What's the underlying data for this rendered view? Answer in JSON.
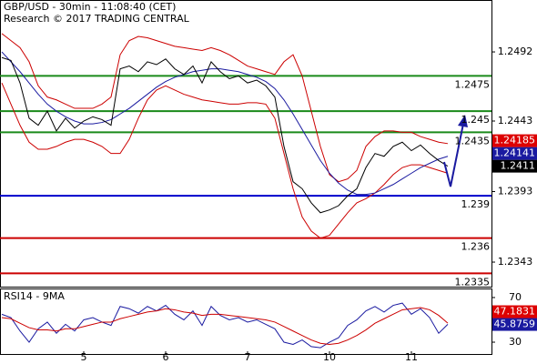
{
  "chart_data": [
    {
      "type": "line",
      "title": "GBP/USD - 30min - 11:08:40 (CET)",
      "subtitle": "Research © 2017 TRADING CENTRAL",
      "categories": [
        null,
        null,
        null,
        null,
        null,
        null,
        null,
        null,
        null,
        "5",
        null,
        null,
        null,
        null,
        null,
        null,
        null,
        null,
        "6",
        null,
        null,
        null,
        null,
        null,
        null,
        null,
        null,
        "7",
        null,
        null,
        null,
        null,
        null,
        null,
        null,
        null,
        "10",
        null,
        null,
        null,
        null,
        null,
        null,
        null,
        null,
        "11",
        null,
        null,
        null,
        null
      ],
      "series": [
        {
          "color": "#cc0000",
          "values": [
            1.2505,
            1.25,
            1.2495,
            1.2485,
            1.2468,
            1.246,
            1.2458,
            1.2455,
            1.2452,
            1.2452,
            1.2452,
            1.2455,
            1.246,
            1.249,
            1.25,
            1.2503,
            1.2502,
            1.25,
            1.2498,
            1.2496,
            1.2495,
            1.2494,
            1.2493,
            1.2495,
            1.2493,
            1.249,
            1.2486,
            1.2482,
            1.248,
            1.2478,
            1.2476,
            1.2485,
            1.249,
            1.2475,
            1.245,
            1.2425,
            1.2405,
            1.24,
            1.2402,
            1.2408,
            1.2425,
            1.2432,
            1.2436,
            1.2436,
            1.2435,
            1.2435,
            1.2432,
            1.243,
            1.2428,
            1.2427
          ]
        },
        {
          "color": "#cc0000",
          "values": [
            1.247,
            1.2455,
            1.244,
            1.2428,
            1.2423,
            1.2423,
            1.2425,
            1.2428,
            1.243,
            1.243,
            1.2428,
            1.2425,
            1.242,
            1.242,
            1.243,
            1.2445,
            1.2458,
            1.2465,
            1.2468,
            1.2465,
            1.2462,
            1.246,
            1.2458,
            1.2457,
            1.2456,
            1.2455,
            1.2455,
            1.2456,
            1.2456,
            1.2455,
            1.2445,
            1.242,
            1.2395,
            1.2375,
            1.2365,
            1.236,
            1.2362,
            1.237,
            1.2378,
            1.2385,
            1.2388,
            1.2392,
            1.2398,
            1.2405,
            1.241,
            1.2412,
            1.2412,
            1.241,
            1.2408,
            1.2406
          ]
        },
        {
          "color": "#1a1aa0",
          "values": [
            1.2492,
            1.2485,
            1.2478,
            1.247,
            1.2462,
            1.2455,
            1.245,
            1.2446,
            1.2443,
            1.2441,
            1.2441,
            1.2442,
            1.2444,
            1.2448,
            1.2452,
            1.2457,
            1.2462,
            1.2467,
            1.2471,
            1.2474,
            1.2476,
            1.2478,
            1.2479,
            1.248,
            1.248,
            1.2479,
            1.2478,
            1.2476,
            1.2474,
            1.2471,
            1.2466,
            1.2458,
            1.2448,
            1.2437,
            1.2426,
            1.2415,
            1.2406,
            1.2399,
            1.2394,
            1.2391,
            1.2391,
            1.2392,
            1.2395,
            1.2398,
            1.2402,
            1.2406,
            1.241,
            1.2413,
            1.2416,
            1.2418
          ]
        },
        {
          "color": "#000000",
          "values": [
            1.2488,
            1.2486,
            1.247,
            1.2445,
            1.244,
            1.245,
            1.2436,
            1.2445,
            1.2438,
            1.2443,
            1.2446,
            1.2444,
            1.244,
            1.248,
            1.2482,
            1.2478,
            1.2485,
            1.2483,
            1.2487,
            1.248,
            1.2476,
            1.2482,
            1.247,
            1.2485,
            1.2478,
            1.2473,
            1.2475,
            1.247,
            1.2472,
            1.2468,
            1.246,
            1.2425,
            1.24,
            1.2395,
            1.2385,
            1.2378,
            1.238,
            1.2383,
            1.239,
            1.2395,
            1.241,
            1.242,
            1.2418,
            1.2425,
            1.2428,
            1.2422,
            1.2426,
            1.242,
            1.2415,
            1.2411
          ]
        }
      ],
      "ylim": [
        1.23256,
        1.25288
      ],
      "yticks": [
        1.2343,
        1.2393,
        1.2443,
        1.2492
      ],
      "levels": [
        {
          "value": 1.2475,
          "color": "#1a8a1a"
        },
        {
          "value": 1.245,
          "color": "#1a8a1a"
        },
        {
          "value": 1.2435,
          "color": "#1a8a1a"
        },
        {
          "value": 1.239,
          "color": "#0000cc"
        },
        {
          "value": 1.236,
          "color": "#cc0000"
        },
        {
          "value": 1.2335,
          "color": "#cc0000"
        }
      ],
      "price_markers": [
        {
          "value": 1.24185,
          "color": "#dd0000"
        },
        {
          "value": 1.24141,
          "color": "#1a1aa0"
        },
        {
          "value": 1.2411,
          "color": "#000000"
        }
      ]
    },
    {
      "type": "line",
      "title": "RSI14 - 9MA",
      "series": [
        {
          "color": "#1a1aa0",
          "values": [
            55,
            52,
            40,
            30,
            42,
            48,
            38,
            46,
            40,
            50,
            52,
            48,
            45,
            62,
            60,
            56,
            62,
            58,
            63,
            55,
            50,
            58,
            45,
            62,
            54,
            50,
            52,
            48,
            50,
            46,
            42,
            30,
            28,
            32,
            26,
            25,
            30,
            34,
            45,
            50,
            58,
            62,
            57,
            63,
            65,
            55,
            60,
            52,
            38,
            46
          ]
        },
        {
          "color": "#cc0000",
          "values": [
            52,
            51,
            47,
            43,
            41,
            41,
            40,
            42,
            42,
            44,
            46,
            48,
            48,
            51,
            53,
            55,
            57,
            58,
            60,
            59,
            57,
            56,
            54,
            55,
            55,
            54,
            53,
            52,
            51,
            50,
            48,
            44,
            40,
            36,
            32,
            29,
            28,
            29,
            32,
            36,
            41,
            47,
            51,
            55,
            59,
            60,
            61,
            59,
            54,
            47
          ]
        }
      ],
      "ylim": [
        18.6,
        77.3
      ],
      "yticks": [
        30,
        70
      ],
      "price_markers": [
        {
          "value": 47.1831,
          "color": "#dd0000"
        },
        {
          "value": 45.8759,
          "color": "#1a1aa0"
        }
      ]
    }
  ]
}
